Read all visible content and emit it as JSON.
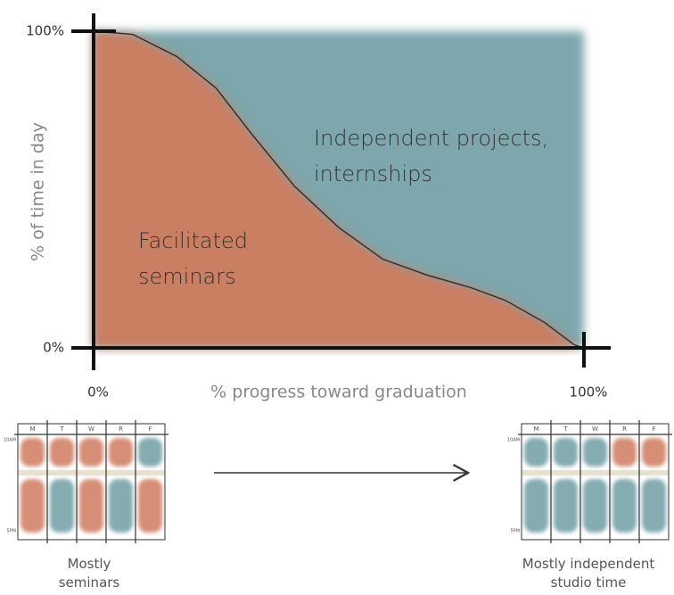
{
  "chart_data": {
    "type": "area",
    "x_label": "% progress toward graduation",
    "y_label": "% of time in day",
    "x": [
      0,
      8,
      17,
      25,
      32,
      41,
      50,
      59,
      68,
      77,
      84,
      92,
      98,
      100
    ],
    "series": [
      {
        "name": "Facilitated seminars",
        "color": "#cf7b5e",
        "values": [
          100,
          99,
          92,
          82,
          68,
          51,
          38,
          28,
          23,
          19,
          15,
          8,
          1,
          0
        ]
      }
    ],
    "remainder": {
      "name": "Independent projects, internships",
      "color": "#6f9ea4"
    },
    "xlim": [
      0,
      100
    ],
    "ylim": [
      0,
      100
    ],
    "xticks": [
      {
        "value": 0,
        "label": "0%"
      },
      {
        "value": 100,
        "label": "100%"
      }
    ],
    "yticks": [
      {
        "value": 0,
        "label": "0%"
      },
      {
        "value": 100,
        "label": "100%"
      }
    ]
  },
  "schedules": [
    {
      "days": [
        "M",
        "T",
        "W",
        "R",
        "F"
      ],
      "times": [
        "10AM",
        "5PM"
      ],
      "caption": "Mostly seminars",
      "cells": [
        [
          "#cf7b5e",
          "#cf7b5e",
          "#cf7b5e",
          "#cf7b5e",
          "#6f9ea4"
        ],
        [
          "#cf7b5e",
          "#6f9ea4",
          "#cf7b5e",
          "#6f9ea4",
          "#cf7b5e"
        ]
      ]
    },
    {
      "days": [
        "M",
        "T",
        "W",
        "R",
        "F"
      ],
      "times": [
        "10AM",
        "5PM"
      ],
      "caption": "Mostly independent studio time",
      "cells": [
        [
          "#6f9ea4",
          "#6f9ea4",
          "#6f9ea4",
          "#cf7b5e",
          "#cf7b5e"
        ],
        [
          "#6f9ea4",
          "#6f9ea4",
          "#6f9ea4",
          "#6f9ea4",
          "#6f9ea4"
        ]
      ]
    }
  ]
}
